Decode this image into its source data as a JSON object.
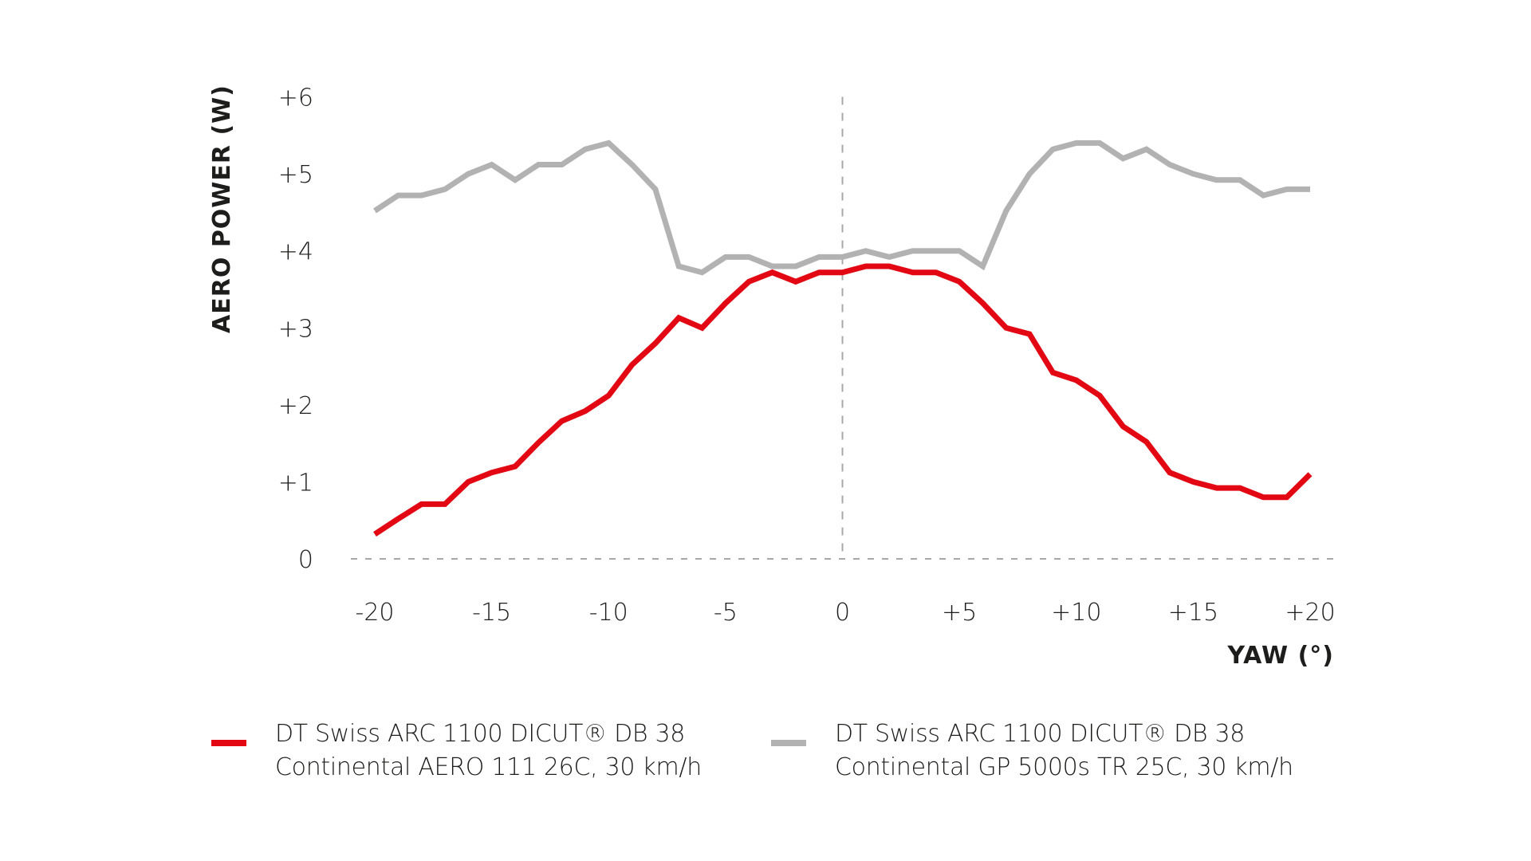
{
  "chart_data": {
    "type": "line",
    "title": "",
    "xlabel": "YAW (°)",
    "ylabel": "AERO POWER (W)",
    "xlim": [
      -20,
      20
    ],
    "ylim": [
      0,
      6
    ],
    "x_ticks": [
      -20,
      -15,
      -10,
      -5,
      0,
      5,
      10,
      15,
      20
    ],
    "x_tick_labels": [
      "-20",
      "-15",
      "-10",
      "-5",
      "0",
      "+5",
      "+10",
      "+15",
      "+20"
    ],
    "y_ticks": [
      0,
      1,
      2,
      3,
      4,
      5,
      6
    ],
    "y_tick_labels": [
      "0",
      "+1",
      "+2",
      "+3",
      "+4",
      "+5",
      "+6"
    ],
    "grid": false,
    "reference_lines": [
      {
        "orientation": "horizontal",
        "value": 0,
        "style": "dashed"
      },
      {
        "orientation": "vertical",
        "value": 0,
        "style": "dashed"
      }
    ],
    "legend_position": "bottom",
    "x": [
      -20,
      -19,
      -18,
      -17,
      -16,
      -15,
      -14,
      -13,
      -12,
      -11,
      -10,
      -9,
      -8,
      -7,
      -6,
      -5,
      -4,
      -3,
      -2,
      -1,
      0,
      1,
      2,
      3,
      4,
      5,
      6,
      7,
      8,
      9,
      10,
      11,
      12,
      13,
      14,
      15,
      16,
      17,
      18,
      19,
      20
    ],
    "series": [
      {
        "name": "DT Swiss ARC 1100 DICUT® DB 38 Continental AERO 111 26C, 30 km/h",
        "label_line1": "DT Swiss ARC 1100 DICUT® DB 38",
        "label_line2": "Continental AERO 111 26C, 30 km/h",
        "color": "#e30613",
        "values": [
          0.32,
          0.52,
          0.71,
          0.71,
          1.0,
          1.12,
          1.2,
          1.51,
          1.79,
          1.92,
          2.12,
          2.52,
          2.8,
          3.13,
          3.0,
          3.32,
          3.6,
          3.72,
          3.6,
          3.72,
          3.72,
          3.8,
          3.8,
          3.72,
          3.72,
          3.6,
          3.32,
          3.0,
          2.92,
          2.42,
          2.32,
          2.12,
          1.72,
          1.52,
          1.12,
          1.0,
          0.92,
          0.92,
          0.8,
          0.8,
          1.1
        ]
      },
      {
        "name": "DT Swiss ARC 1100 DICUT® DB 38 Continental GP 5000s TR 25C, 30 km/h",
        "label_line1": "DT Swiss ARC 1100 DICUT® DB 38",
        "label_line2": "Continental GP 5000s TR 25C, 30 km/h",
        "color": "#b2b2b2",
        "values": [
          4.52,
          4.72,
          4.72,
          4.8,
          5.0,
          5.12,
          4.92,
          5.12,
          5.12,
          5.32,
          5.4,
          5.12,
          4.8,
          3.8,
          3.72,
          3.92,
          3.92,
          3.8,
          3.8,
          3.92,
          3.92,
          4.0,
          3.92,
          4.0,
          4.0,
          4.0,
          3.8,
          4.52,
          5.0,
          5.32,
          5.4,
          5.4,
          5.2,
          5.32,
          5.12,
          5.0,
          4.92,
          4.92,
          4.72,
          4.8,
          4.8
        ]
      }
    ]
  }
}
